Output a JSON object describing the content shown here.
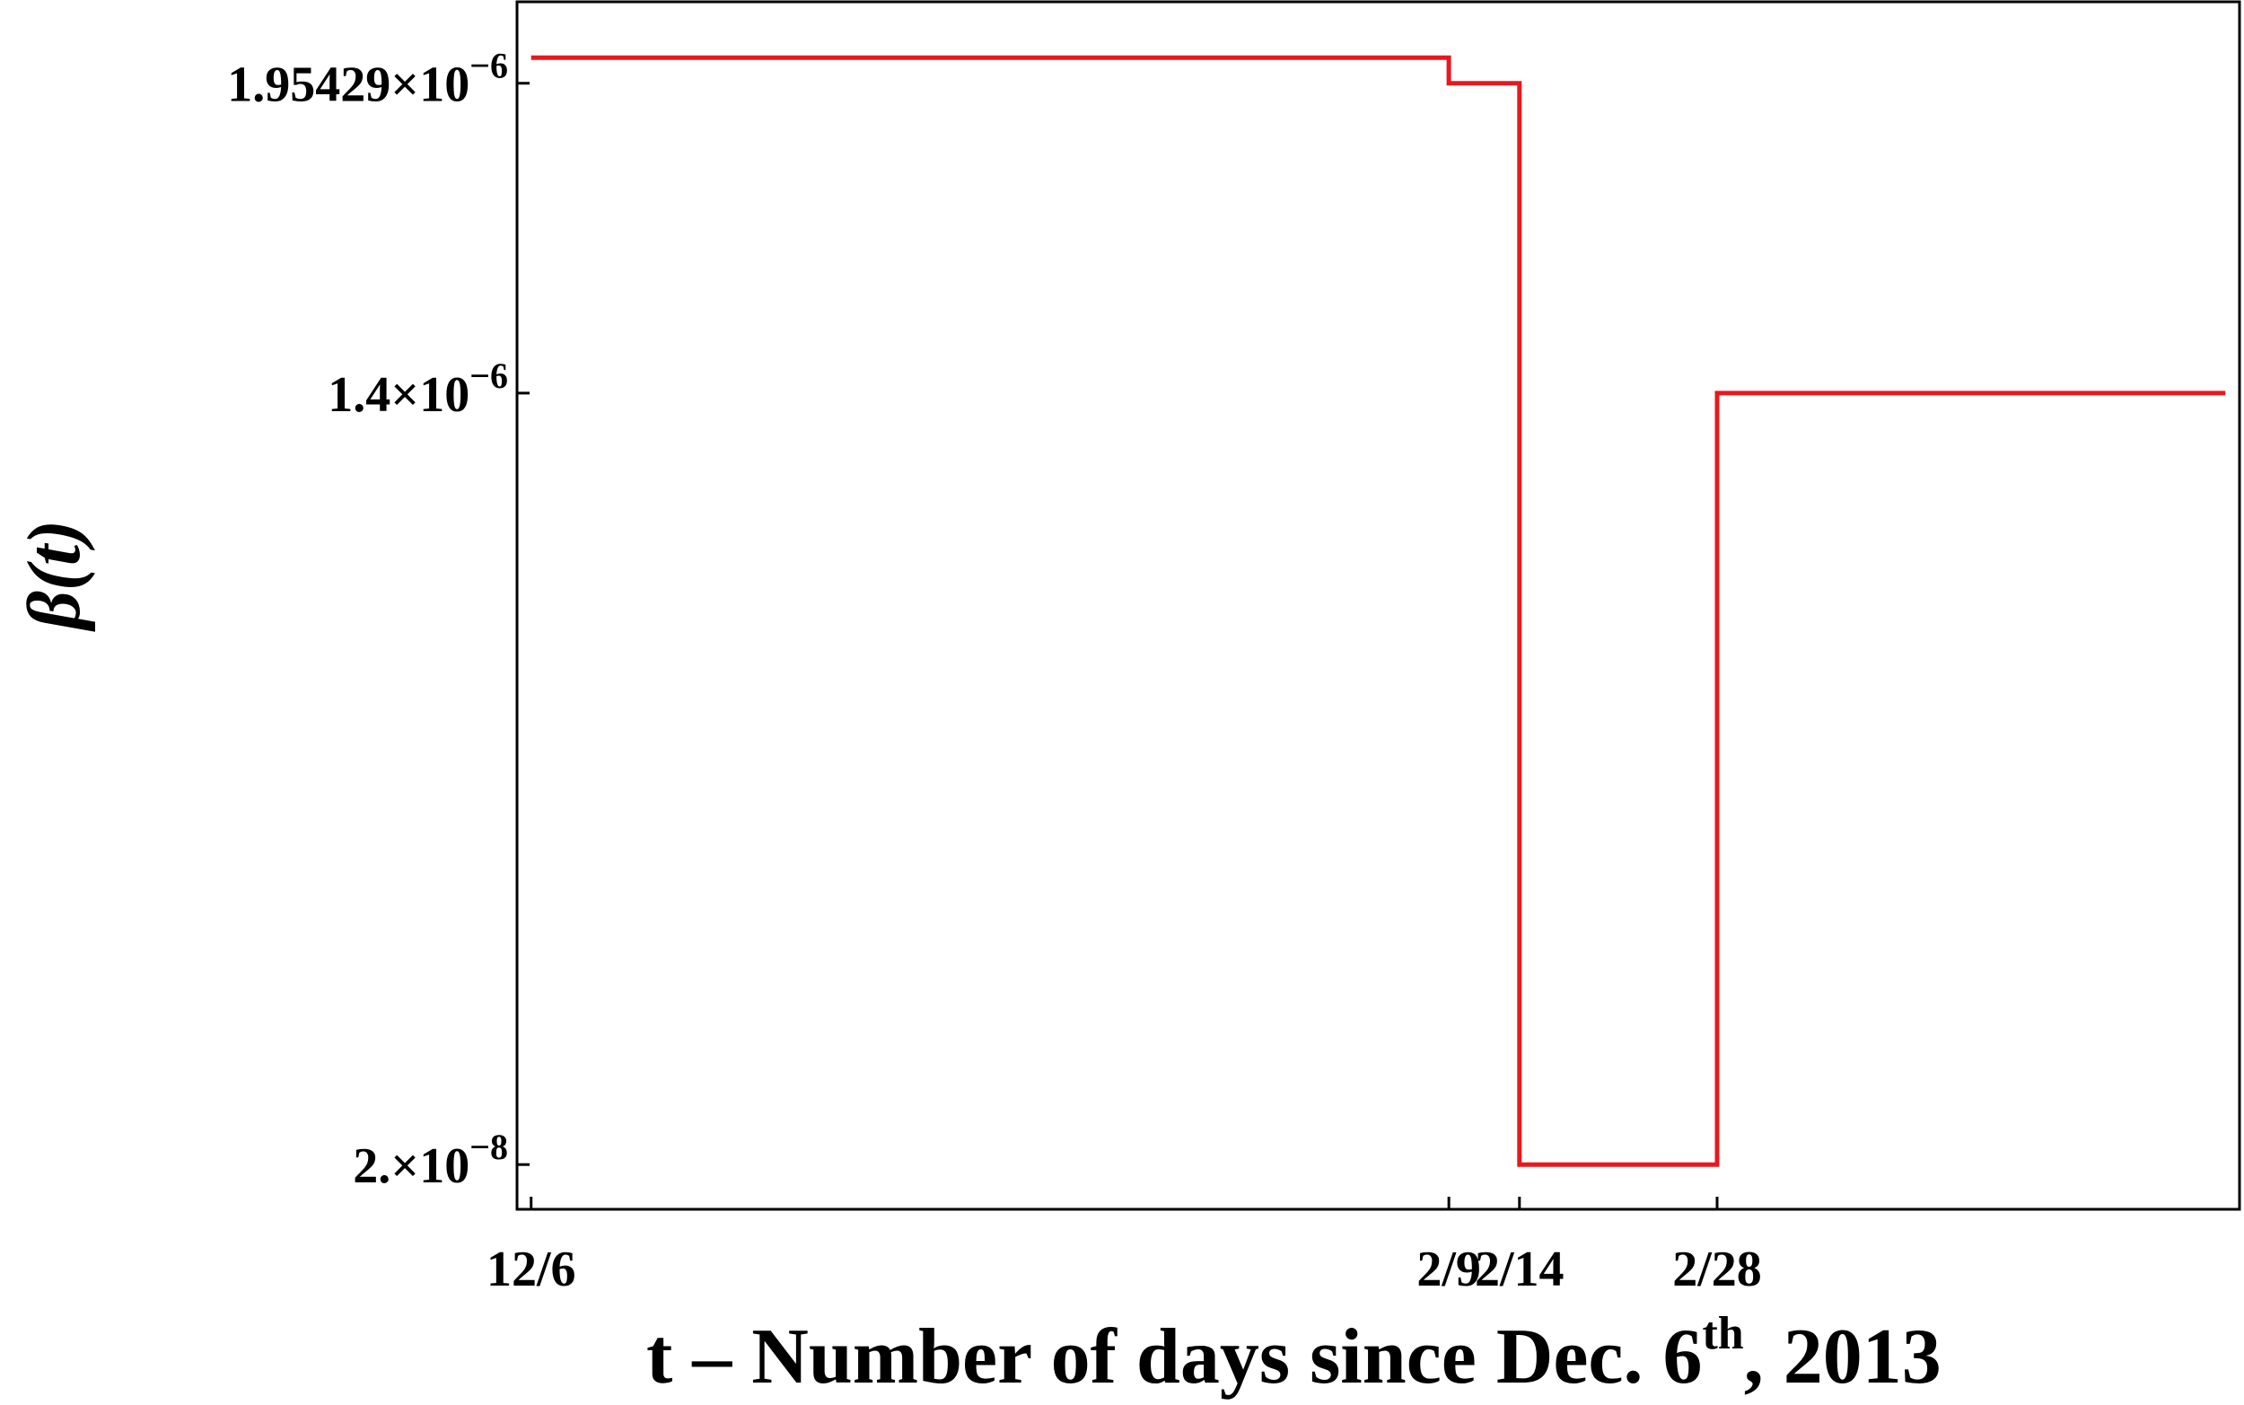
{
  "chart_data": {
    "type": "line",
    "style": "step",
    "xlabel": {
      "main": "t – Number of days since Dec. 6",
      "sup": "th",
      "tail": ", 2013"
    },
    "ylabel": "β(t)",
    "x_ticks": [
      {
        "label": "12/6",
        "date": "2013-12-06"
      },
      {
        "label": "2/9",
        "date": "2014-02-09"
      },
      {
        "label": "2/14",
        "date": "2014-02-14"
      },
      {
        "label": "2/28",
        "date": "2014-02-28"
      }
    ],
    "y_ticks": [
      {
        "mantissa": "1.95429",
        "exp": "−6",
        "value": 1.95429e-06
      },
      {
        "mantissa": "1.4",
        "exp": "−6",
        "value": 1.4e-06
      },
      {
        "mantissa": "2.",
        "exp": "−8",
        "value": 2e-08
      }
    ],
    "xlim": [
      "2013-12-05",
      "2014-04-06"
    ],
    "ylim": [
      -6e-08,
      2.1e-06
    ],
    "series": [
      {
        "color": "#e8181e",
        "points": [
          {
            "x": "2013-12-06",
            "y": 2e-06
          },
          {
            "x": "2014-02-09",
            "y": 2e-06
          },
          {
            "x": "2014-02-09",
            "y": 1.95429e-06
          },
          {
            "x": "2014-02-14",
            "y": 1.95429e-06
          },
          {
            "x": "2014-02-14",
            "y": 2e-08
          },
          {
            "x": "2014-02-28",
            "y": 2e-08
          },
          {
            "x": "2014-02-28",
            "y": 1.4e-06
          },
          {
            "x": "2014-04-05",
            "y": 1.4e-06
          }
        ]
      }
    ],
    "grid": false,
    "frame": true
  }
}
